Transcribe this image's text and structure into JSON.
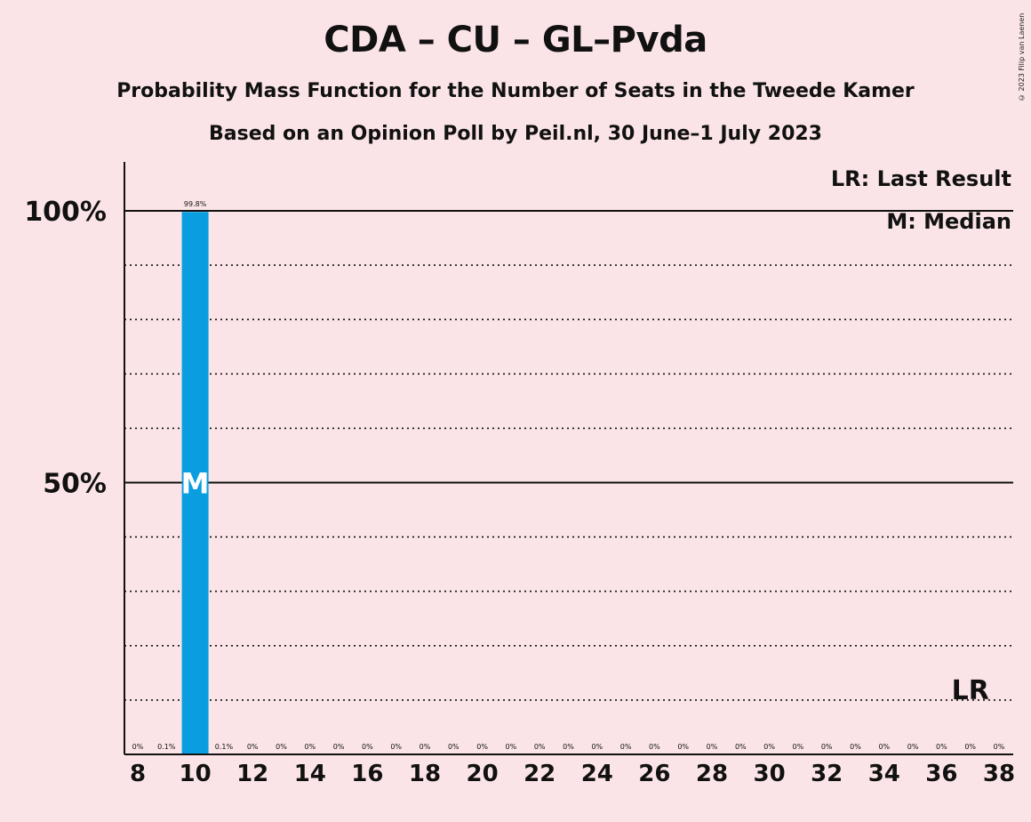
{
  "header": {
    "title": "CDA – CU – GL–Pvda",
    "subtitle1": "Probability Mass Function for the Number of Seats in the Tweede Kamer",
    "subtitle2": "Based on an Opinion Poll by Peil.nl, 30 June–1 July 2023",
    "copyright": "© 2023 Filip van Laenen"
  },
  "legend": {
    "last_result": "LR: Last Result",
    "median": "M: Median"
  },
  "colors": {
    "background": "#fbe4e7",
    "bar": "#0a9ee0",
    "text": "#111111"
  },
  "chart_data": {
    "type": "bar",
    "x": [
      8,
      9,
      10,
      11,
      12,
      13,
      14,
      15,
      16,
      17,
      18,
      19,
      20,
      21,
      22,
      23,
      24,
      25,
      26,
      27,
      28,
      29,
      30,
      31,
      32,
      33,
      34,
      35,
      36,
      37,
      38
    ],
    "values": [
      0,
      0.1,
      99.8,
      0.1,
      0,
      0,
      0,
      0,
      0,
      0,
      0,
      0,
      0,
      0,
      0,
      0,
      0,
      0,
      0,
      0,
      0,
      0,
      0,
      0,
      0,
      0,
      0,
      0,
      0,
      0,
      0
    ],
    "data_labels": [
      "0%",
      "0.1%",
      "99.8%",
      "0.1%",
      "0%",
      "0%",
      "0%",
      "0%",
      "0%",
      "0%",
      "0%",
      "0%",
      "0%",
      "0%",
      "0%",
      "0%",
      "0%",
      "0%",
      "0%",
      "0%",
      "0%",
      "0%",
      "0%",
      "0%",
      "0%",
      "0%",
      "0%",
      "0%",
      "0%",
      "0%",
      "0%"
    ],
    "x_tick_labels": [
      "8",
      "10",
      "12",
      "14",
      "16",
      "18",
      "20",
      "22",
      "24",
      "26",
      "28",
      "30",
      "32",
      "34",
      "36",
      "38"
    ],
    "y_tick_labels": [
      "50%",
      "100%"
    ],
    "ylim": [
      0,
      109
    ],
    "dotted_gridlines": [
      10,
      20,
      30,
      40,
      60,
      70,
      80,
      90
    ],
    "solid_gridlines": [
      50,
      100
    ],
    "median": {
      "x": 10,
      "label": "M"
    },
    "last_result": {
      "x": 37,
      "label": "LR"
    },
    "legend_position": "top-right"
  }
}
